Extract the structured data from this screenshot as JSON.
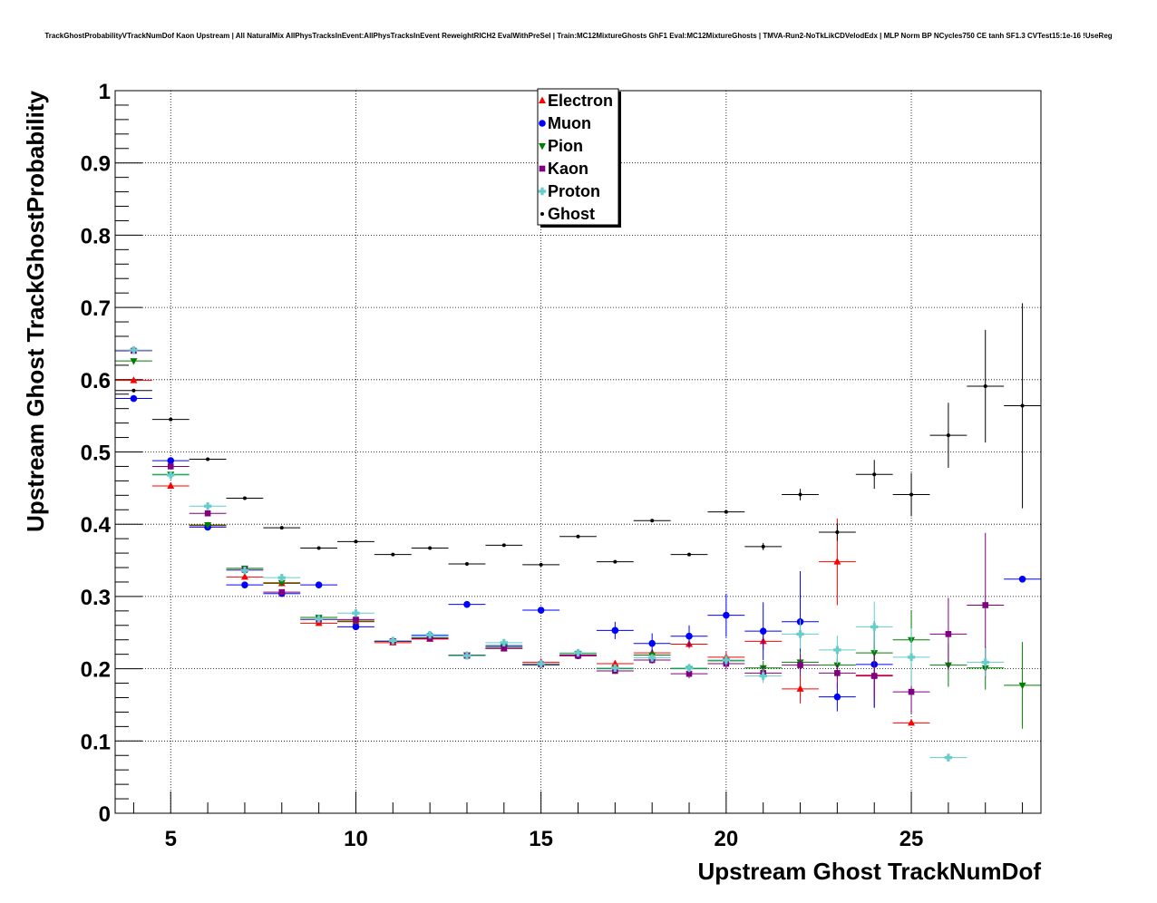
{
  "chart_data": {
    "type": "scatter",
    "title": "TrackGhostProbabilityVTrackNumDof Kaon Upstream | All NaturalMix AllPhysTracksInEvent:AllPhysTracksInEvent ReweightRICH2 EvalWithPreSel | Train:MC12MixtureGhosts GhF1 Eval:MC12MixtureGhosts | TMVA-Run2-NoTkLikCDVelodEdx | MLP Norm BP NCycles750 CE tanh SF1.3 CVTest15:1e-16 !UseReg",
    "xlabel": "Upstream Ghost TrackNumDof",
    "ylabel": "Upstream Ghost TrackGhostProbability",
    "xlim": [
      3.5,
      28.5
    ],
    "ylim": [
      0,
      1
    ],
    "x_ticks": [
      "5",
      "10",
      "15",
      "20",
      "25"
    ],
    "y_ticks": [
      "0",
      "0.1",
      "0.2",
      "0.3",
      "0.4",
      "0.5",
      "0.6",
      "0.7",
      "0.8",
      "0.9",
      "1"
    ],
    "grid": true,
    "legend_position": "top-center",
    "series": [
      {
        "name": "Electron",
        "color": "#ff0000",
        "marker": "triangle-up",
        "points": [
          {
            "x": 4,
            "y": 0.599,
            "e": 0
          },
          {
            "x": 5,
            "y": 0.453,
            "e": 0.004
          },
          {
            "x": 6,
            "y": 0.398,
            "e": 0.002
          },
          {
            "x": 7,
            "y": 0.327,
            "e": 0.002
          },
          {
            "x": 8,
            "y": 0.318,
            "e": 0.002
          },
          {
            "x": 9,
            "y": 0.263,
            "e": 0.002
          },
          {
            "x": 10,
            "y": 0.265,
            "e": 0.003
          },
          {
            "x": 11,
            "y": 0.236,
            "e": 0.003
          },
          {
            "x": 12,
            "y": 0.241,
            "e": 0.003
          },
          {
            "x": 13,
            "y": 0.219,
            "e": 0.003
          },
          {
            "x": 14,
            "y": 0.228,
            "e": 0.003
          },
          {
            "x": 15,
            "y": 0.209,
            "e": 0.004
          },
          {
            "x": 16,
            "y": 0.219,
            "e": 0.003
          },
          {
            "x": 17,
            "y": 0.207,
            "e": 0.004
          },
          {
            "x": 18,
            "y": 0.222,
            "e": 0.005
          },
          {
            "x": 19,
            "y": 0.234,
            "e": 0.006
          },
          {
            "x": 20,
            "y": 0.216,
            "e": 0.008
          },
          {
            "x": 21,
            "y": 0.238,
            "e": 0.012
          },
          {
            "x": 22,
            "y": 0.172,
            "e": 0.02
          },
          {
            "x": 23,
            "y": 0.348,
            "e": 0.06
          },
          {
            "x": 24,
            "y": 0.191,
            "e": 0.045
          },
          {
            "x": 25,
            "y": 0.125,
            "e": 0
          }
        ]
      },
      {
        "name": "Muon",
        "color": "#0000ff",
        "marker": "circle",
        "points": [
          {
            "x": 4,
            "y": 0.574,
            "e": 0
          },
          {
            "x": 5,
            "y": 0.488,
            "e": 0.003
          },
          {
            "x": 6,
            "y": 0.396,
            "e": 0.003
          },
          {
            "x": 7,
            "y": 0.316,
            "e": 0.002
          },
          {
            "x": 8,
            "y": 0.304,
            "e": 0.002
          },
          {
            "x": 9,
            "y": 0.316,
            "e": 0.002
          },
          {
            "x": 10,
            "y": 0.258,
            "e": 0.004
          },
          {
            "x": 11,
            "y": 0.238,
            "e": 0.004
          },
          {
            "x": 12,
            "y": 0.246,
            "e": 0.004
          },
          {
            "x": 13,
            "y": 0.289,
            "e": 0.003
          },
          {
            "x": 14,
            "y": 0.232,
            "e": 0.004
          },
          {
            "x": 15,
            "y": 0.281,
            "e": 0.004
          },
          {
            "x": 16,
            "y": 0.218,
            "e": 0.004
          },
          {
            "x": 17,
            "y": 0.253,
            "e": 0.012
          },
          {
            "x": 18,
            "y": 0.235,
            "e": 0.014
          },
          {
            "x": 19,
            "y": 0.245,
            "e": 0.015
          },
          {
            "x": 20,
            "y": 0.274,
            "e": 0.03
          },
          {
            "x": 21,
            "y": 0.252,
            "e": 0.04
          },
          {
            "x": 22,
            "y": 0.265,
            "e": 0.07
          },
          {
            "x": 23,
            "y": 0.161,
            "e": 0.02
          },
          {
            "x": 24,
            "y": 0.206,
            "e": 0.06
          },
          {
            "x": 28,
            "y": 0.324,
            "e": 0
          }
        ]
      },
      {
        "name": "Pion",
        "color": "#008000",
        "marker": "triangle-down",
        "points": [
          {
            "x": 4,
            "y": 0.626,
            "e": 0
          },
          {
            "x": 5,
            "y": 0.469,
            "e": 0.003
          },
          {
            "x": 6,
            "y": 0.399,
            "e": 0.002
          },
          {
            "x": 7,
            "y": 0.339,
            "e": 0.002
          },
          {
            "x": 8,
            "y": 0.319,
            "e": 0.002
          },
          {
            "x": 9,
            "y": 0.271,
            "e": 0.002
          },
          {
            "x": 10,
            "y": 0.266,
            "e": 0.003
          },
          {
            "x": 11,
            "y": 0.238,
            "e": 0.002
          },
          {
            "x": 12,
            "y": 0.243,
            "e": 0.002
          },
          {
            "x": 13,
            "y": 0.219,
            "e": 0.002
          },
          {
            "x": 14,
            "y": 0.23,
            "e": 0.003
          },
          {
            "x": 15,
            "y": 0.205,
            "e": 0.003
          },
          {
            "x": 16,
            "y": 0.221,
            "e": 0.003
          },
          {
            "x": 17,
            "y": 0.2,
            "e": 0.004
          },
          {
            "x": 18,
            "y": 0.219,
            "e": 0.005
          },
          {
            "x": 19,
            "y": 0.2,
            "e": 0.006
          },
          {
            "x": 20,
            "y": 0.211,
            "e": 0.008
          },
          {
            "x": 21,
            "y": 0.201,
            "e": 0.01
          },
          {
            "x": 22,
            "y": 0.209,
            "e": 0.015
          },
          {
            "x": 23,
            "y": 0.205,
            "e": 0.02
          },
          {
            "x": 24,
            "y": 0.222,
            "e": 0.03
          },
          {
            "x": 25,
            "y": 0.24,
            "e": 0.04
          },
          {
            "x": 26,
            "y": 0.205,
            "e": 0.03
          },
          {
            "x": 27,
            "y": 0.201,
            "e": 0.03
          },
          {
            "x": 28,
            "y": 0.177,
            "e": 0.06
          }
        ]
      },
      {
        "name": "Kaon",
        "color": "#800080",
        "marker": "square",
        "points": [
          {
            "x": 4,
            "y": 0.64,
            "e": 0
          },
          {
            "x": 5,
            "y": 0.48,
            "e": 0.003
          },
          {
            "x": 6,
            "y": 0.415,
            "e": 0.002
          },
          {
            "x": 7,
            "y": 0.337,
            "e": 0.002
          },
          {
            "x": 8,
            "y": 0.306,
            "e": 0.002
          },
          {
            "x": 9,
            "y": 0.268,
            "e": 0.002
          },
          {
            "x": 10,
            "y": 0.268,
            "e": 0.003
          },
          {
            "x": 11,
            "y": 0.238,
            "e": 0.002
          },
          {
            "x": 12,
            "y": 0.242,
            "e": 0.002
          },
          {
            "x": 13,
            "y": 0.218,
            "e": 0.002
          },
          {
            "x": 14,
            "y": 0.228,
            "e": 0.003
          },
          {
            "x": 15,
            "y": 0.206,
            "e": 0.003
          },
          {
            "x": 16,
            "y": 0.218,
            "e": 0.003
          },
          {
            "x": 17,
            "y": 0.197,
            "e": 0.004
          },
          {
            "x": 18,
            "y": 0.212,
            "e": 0.005
          },
          {
            "x": 19,
            "y": 0.193,
            "e": 0.006
          },
          {
            "x": 20,
            "y": 0.207,
            "e": 0.008
          },
          {
            "x": 21,
            "y": 0.194,
            "e": 0.01
          },
          {
            "x": 22,
            "y": 0.205,
            "e": 0.015
          },
          {
            "x": 23,
            "y": 0.194,
            "e": 0.02
          },
          {
            "x": 24,
            "y": 0.19,
            "e": 0.03
          },
          {
            "x": 25,
            "y": 0.168,
            "e": 0.03
          },
          {
            "x": 26,
            "y": 0.248,
            "e": 0.05
          },
          {
            "x": 27,
            "y": 0.288,
            "e": 0.1
          }
        ]
      },
      {
        "name": "Proton",
        "color": "#66cccc",
        "marker": "cross",
        "points": [
          {
            "x": 4,
            "y": 0.641,
            "e": 0
          },
          {
            "x": 5,
            "y": 0.468,
            "e": 0.003
          },
          {
            "x": 6,
            "y": 0.425,
            "e": 0.002
          },
          {
            "x": 7,
            "y": 0.336,
            "e": 0.002
          },
          {
            "x": 8,
            "y": 0.326,
            "e": 0.002
          },
          {
            "x": 9,
            "y": 0.269,
            "e": 0.002
          },
          {
            "x": 10,
            "y": 0.277,
            "e": 0.003
          },
          {
            "x": 11,
            "y": 0.239,
            "e": 0.002
          },
          {
            "x": 12,
            "y": 0.247,
            "e": 0.003
          },
          {
            "x": 13,
            "y": 0.218,
            "e": 0.002
          },
          {
            "x": 14,
            "y": 0.236,
            "e": 0.003
          },
          {
            "x": 15,
            "y": 0.207,
            "e": 0.003
          },
          {
            "x": 16,
            "y": 0.222,
            "e": 0.003
          },
          {
            "x": 17,
            "y": 0.201,
            "e": 0.004
          },
          {
            "x": 18,
            "y": 0.215,
            "e": 0.005
          },
          {
            "x": 19,
            "y": 0.201,
            "e": 0.006
          },
          {
            "x": 20,
            "y": 0.212,
            "e": 0.008
          },
          {
            "x": 21,
            "y": 0.19,
            "e": 0.01
          },
          {
            "x": 22,
            "y": 0.248,
            "e": 0.02
          },
          {
            "x": 23,
            "y": 0.226,
            "e": 0.02
          },
          {
            "x": 24,
            "y": 0.258,
            "e": 0.035
          },
          {
            "x": 25,
            "y": 0.216,
            "e": 0.04
          },
          {
            "x": 26,
            "y": 0.077,
            "e": 0
          },
          {
            "x": 27,
            "y": 0.209,
            "e": 0.02
          }
        ]
      },
      {
        "name": "Ghost",
        "color": "#000000",
        "marker": "dot",
        "points": [
          {
            "x": 4,
            "y": 0.585,
            "e": 0
          },
          {
            "x": 5,
            "y": 0.545,
            "e": 0
          },
          {
            "x": 6,
            "y": 0.49,
            "e": 0
          },
          {
            "x": 7,
            "y": 0.436,
            "e": 0
          },
          {
            "x": 8,
            "y": 0.395,
            "e": 0
          },
          {
            "x": 9,
            "y": 0.367,
            "e": 0
          },
          {
            "x": 10,
            "y": 0.376,
            "e": 0
          },
          {
            "x": 11,
            "y": 0.358,
            "e": 0
          },
          {
            "x": 12,
            "y": 0.367,
            "e": 0
          },
          {
            "x": 13,
            "y": 0.345,
            "e": 0
          },
          {
            "x": 14,
            "y": 0.371,
            "e": 0
          },
          {
            "x": 15,
            "y": 0.344,
            "e": 0
          },
          {
            "x": 16,
            "y": 0.383,
            "e": 0
          },
          {
            "x": 17,
            "y": 0.348,
            "e": 0
          },
          {
            "x": 18,
            "y": 0.405,
            "e": 0
          },
          {
            "x": 19,
            "y": 0.358,
            "e": 0
          },
          {
            "x": 20,
            "y": 0.417,
            "e": 0
          },
          {
            "x": 21,
            "y": 0.369,
            "e": 0.005
          },
          {
            "x": 22,
            "y": 0.441,
            "e": 0.008
          },
          {
            "x": 23,
            "y": 0.389,
            "e": 0.012
          },
          {
            "x": 24,
            "y": 0.469,
            "e": 0.02
          },
          {
            "x": 25,
            "y": 0.441,
            "e": 0.03
          },
          {
            "x": 26,
            "y": 0.523,
            "e": 0.045
          },
          {
            "x": 27,
            "y": 0.591,
            "e": 0.078
          },
          {
            "x": 28,
            "y": 0.564,
            "e": 0.142
          }
        ]
      }
    ]
  }
}
